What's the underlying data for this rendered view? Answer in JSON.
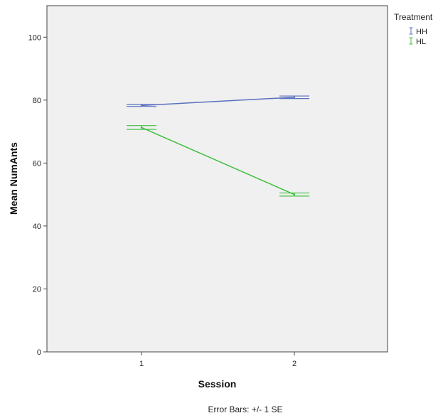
{
  "chart_data": {
    "type": "line",
    "x": [
      1,
      2
    ],
    "xlabel": "Session",
    "ylabel": "Mean NumAnts",
    "ylim": [
      0,
      110
    ],
    "yticks": [
      0,
      20,
      40,
      60,
      80,
      100
    ],
    "xticks": [
      "1",
      "2"
    ],
    "grid": false,
    "legend": {
      "title": "Treatment",
      "position": "right"
    },
    "series": [
      {
        "name": "HH",
        "color": "#5a70c0",
        "values": [
          78.3,
          80.9
        ],
        "se": [
          0.3,
          0.4
        ]
      },
      {
        "name": "HL",
        "color": "#3fbf3f",
        "values": [
          71.3,
          50.0
        ],
        "se": [
          0.6,
          0.5
        ]
      }
    ],
    "footnote": "Error Bars: +/- 1 SE"
  }
}
